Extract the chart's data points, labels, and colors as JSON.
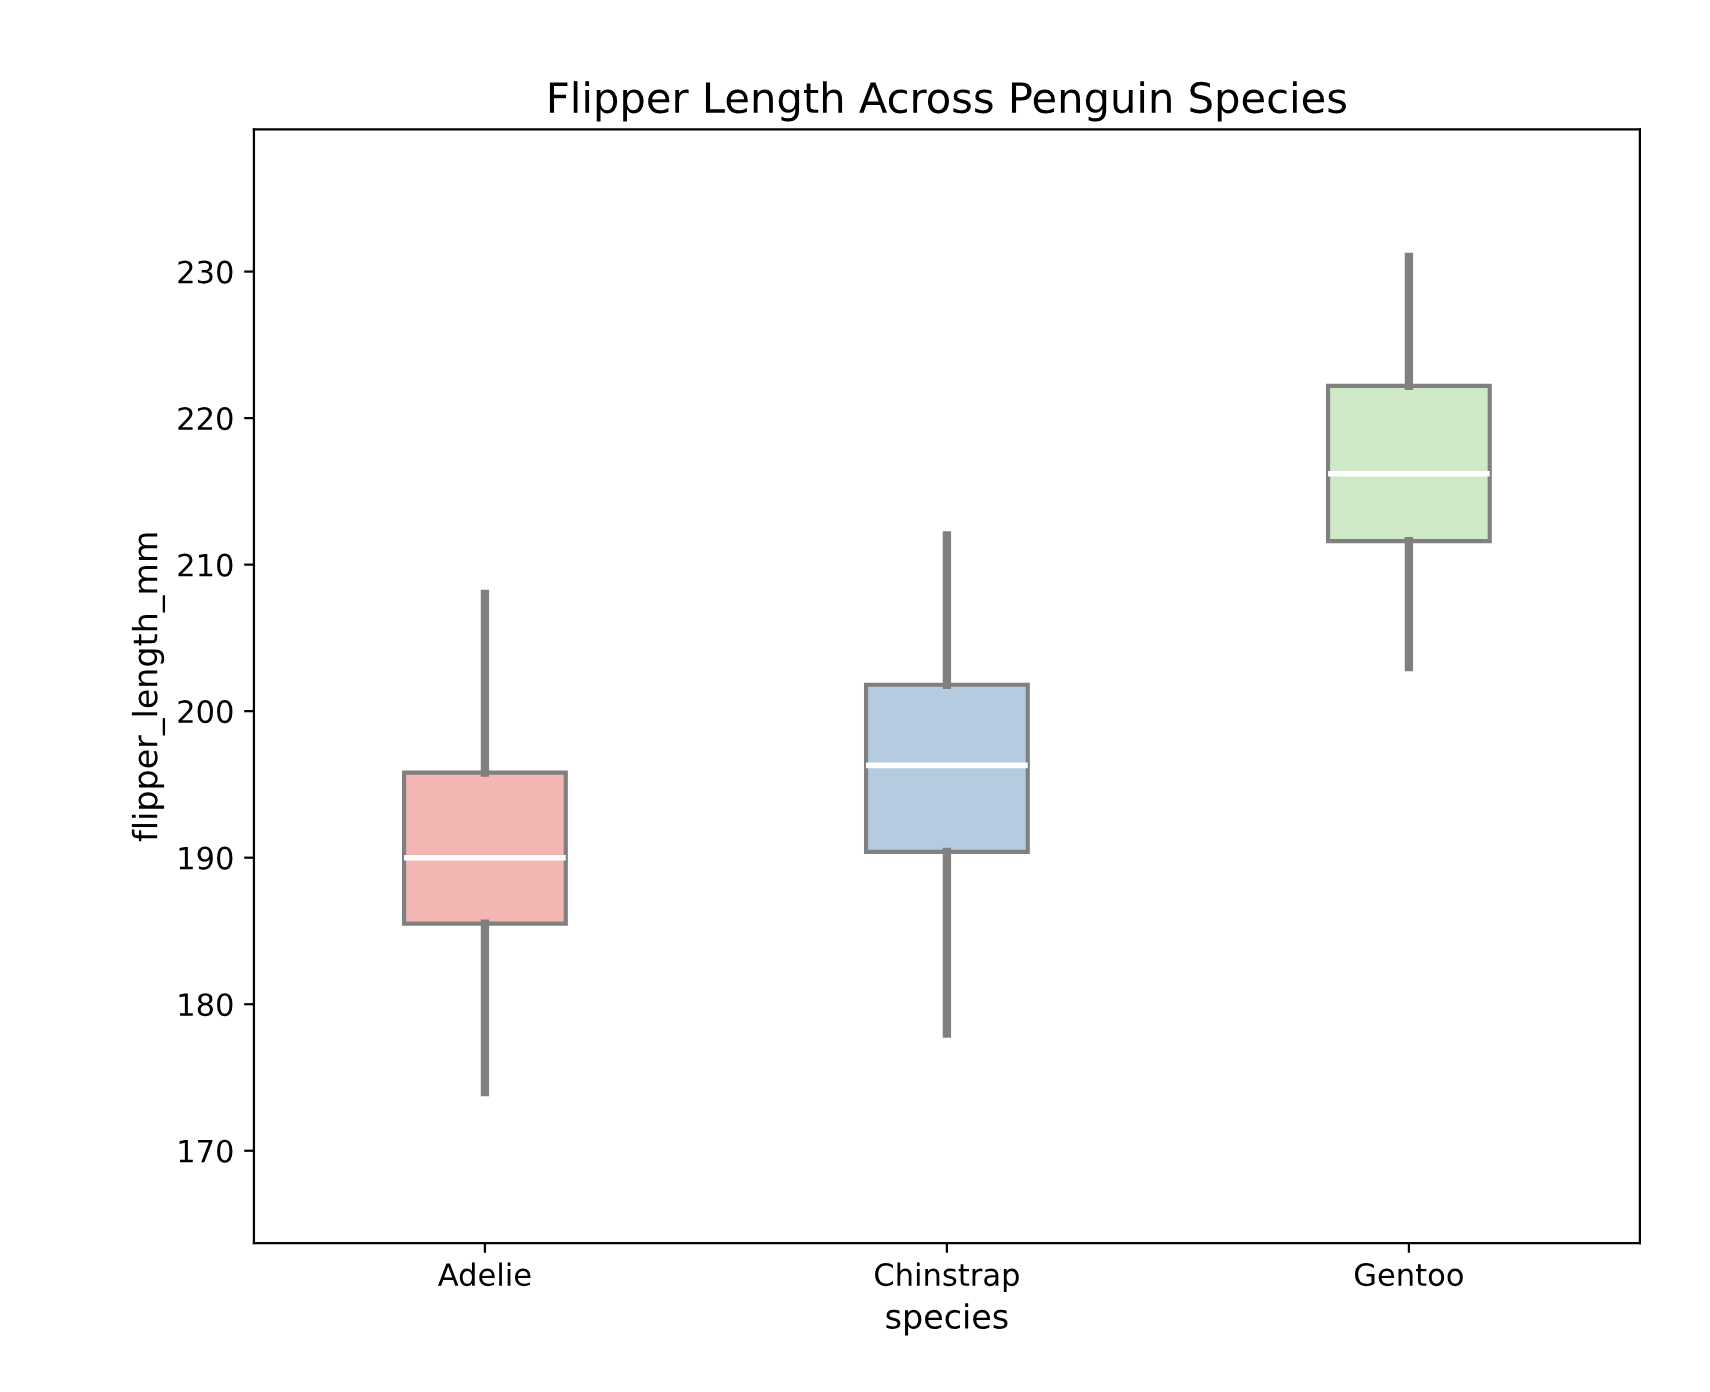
{
  "chart_data": {
    "type": "box",
    "title": "Flipper Length Across Penguin Species",
    "xlabel": "species",
    "ylabel": "flipper_length_mm",
    "categories": [
      "Adelie",
      "Chinstrap",
      "Gentoo"
    ],
    "boxes": [
      {
        "low": 174,
        "q1": 185.5,
        "median": 190,
        "q3": 195.8,
        "high": 208
      },
      {
        "low": 178,
        "q1": 190.4,
        "median": 196.3,
        "q3": 201.8,
        "high": 212
      },
      {
        "low": 203,
        "q1": 211.6,
        "median": 216.2,
        "q3": 222.2,
        "high": 231
      }
    ],
    "colors": [
      "#f2b6b3",
      "#b5cbe0",
      "#cfe8c8"
    ],
    "ylim": [
      163.7,
      239.7
    ],
    "yticks": [
      170,
      180,
      190,
      200,
      210,
      220,
      230
    ],
    "grid": false
  }
}
